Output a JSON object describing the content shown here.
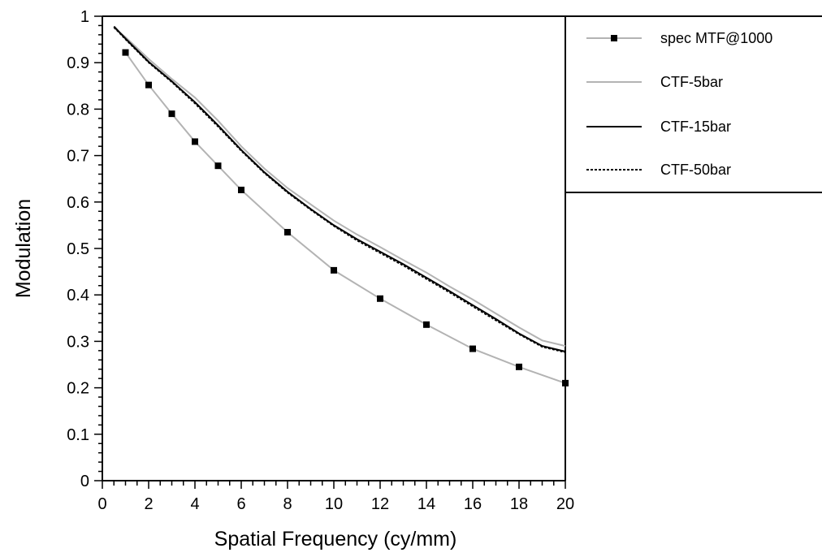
{
  "chart_data": {
    "type": "line",
    "title": "",
    "xlabel": "Spatial Frequency (cy/mm)",
    "ylabel": "Modulation",
    "xlim": [
      0,
      20
    ],
    "ylim": [
      0,
      1
    ],
    "x_ticks": [
      "0",
      "2",
      "4",
      "6",
      "8",
      "10",
      "12",
      "14",
      "16",
      "18",
      "20"
    ],
    "y_ticks": [
      "0",
      "0.1",
      "0.2",
      "0.3",
      "0.4",
      "0.5",
      "0.6",
      "0.7",
      "0.8",
      "0.9",
      "1"
    ],
    "grid": false,
    "legend_position": "top-right",
    "series": [
      {
        "name": "spec MTF@1000",
        "style": "line-with-square-markers",
        "line_color": "#b3b3b3",
        "marker_color": "#000000",
        "x": [
          1,
          2,
          3,
          4,
          5,
          6,
          8,
          10,
          12,
          14,
          16,
          18,
          20
        ],
        "y": [
          0.922,
          0.852,
          0.79,
          0.73,
          0.678,
          0.626,
          0.535,
          0.453,
          0.392,
          0.336,
          0.284,
          0.245,
          0.21
        ]
      },
      {
        "name": "CTF-5bar",
        "style": "solid",
        "line_color": "#b3b3b3",
        "x": [
          0.5,
          1,
          2,
          3,
          4,
          5,
          6,
          7,
          8,
          9,
          10,
          11,
          12,
          13,
          14,
          15,
          16,
          17,
          18,
          19,
          20
        ],
        "y": [
          0.975,
          0.955,
          0.908,
          0.865,
          0.825,
          0.775,
          0.72,
          0.672,
          0.63,
          0.595,
          0.56,
          0.53,
          0.503,
          0.475,
          0.448,
          0.418,
          0.39,
          0.36,
          0.33,
          0.302,
          0.29
        ]
      },
      {
        "name": "CTF-15bar",
        "style": "solid",
        "line_color": "#000000",
        "x": [
          0.5,
          1,
          2,
          3,
          4,
          5,
          6,
          7,
          8,
          9,
          10,
          11,
          12,
          13,
          14,
          15,
          16,
          17,
          18,
          19,
          20
        ],
        "y": [
          0.978,
          0.952,
          0.902,
          0.86,
          0.815,
          0.765,
          0.712,
          0.664,
          0.622,
          0.585,
          0.55,
          0.52,
          0.493,
          0.466,
          0.437,
          0.408,
          0.378,
          0.348,
          0.317,
          0.29,
          0.278
        ]
      },
      {
        "name": "CTF-50bar",
        "style": "dashed",
        "line_color": "#000000",
        "x": [
          0.5,
          1,
          2,
          3,
          4,
          5,
          6,
          7,
          8,
          9,
          10,
          11,
          12,
          13,
          14,
          15,
          16,
          17,
          18,
          19,
          20
        ],
        "y": [
          0.976,
          0.95,
          0.9,
          0.858,
          0.812,
          0.762,
          0.71,
          0.662,
          0.62,
          0.583,
          0.548,
          0.517,
          0.49,
          0.463,
          0.434,
          0.405,
          0.375,
          0.345,
          0.315,
          0.288,
          0.276
        ]
      }
    ]
  }
}
